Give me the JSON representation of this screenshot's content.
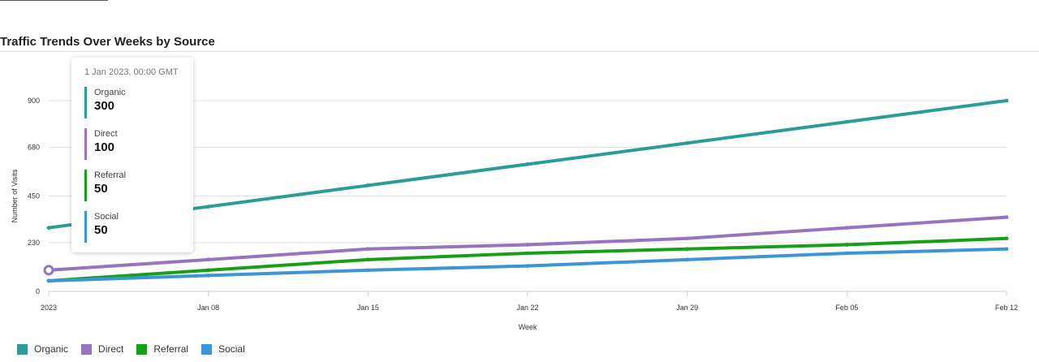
{
  "chart_data": {
    "type": "line",
    "title": "Traffic Trends Over Weeks by Source",
    "xlabel": "Week",
    "ylabel": "Number of Visits",
    "x": [
      "2023",
      "Jan 08",
      "Jan 15",
      "Jan 22",
      "Jan 29",
      "Feb 05",
      "Feb 12"
    ],
    "y_ticks": [
      "0",
      "230",
      "450",
      "680",
      "900"
    ],
    "ylim": [
      0,
      900
    ],
    "series": [
      {
        "name": "Organic",
        "color": "#2a9d9a",
        "values": [
          300,
          400,
          500,
          600,
          700,
          800,
          900
        ]
      },
      {
        "name": "Direct",
        "color": "#9574c0",
        "values": [
          100,
          150,
          200,
          220,
          250,
          300,
          350
        ]
      },
      {
        "name": "Referral",
        "color": "#17a017",
        "values": [
          50,
          100,
          150,
          180,
          200,
          220,
          250
        ]
      },
      {
        "name": "Social",
        "color": "#3d95d7",
        "values": [
          50,
          75,
          100,
          120,
          150,
          180,
          200
        ]
      }
    ],
    "legend_position": "bottom-left",
    "grid": true
  },
  "tooltip": {
    "date": "1 Jan 2023, 00:00 GMT",
    "items": [
      {
        "name": "Organic",
        "value": "300",
        "color": "#2a9d9a"
      },
      {
        "name": "Direct",
        "value": "100",
        "color": "#9574c0"
      },
      {
        "name": "Referral",
        "value": "50",
        "color": "#17a017"
      },
      {
        "name": "Social",
        "value": "50",
        "color": "#3d95d7"
      }
    ]
  }
}
